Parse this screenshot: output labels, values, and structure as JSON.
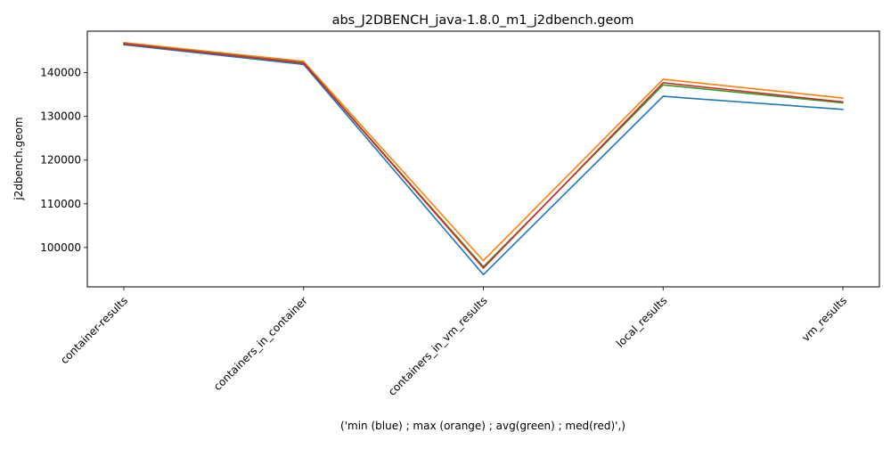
{
  "chart_data": {
    "type": "line",
    "title": "abs_J2DBENCH_java-1.8.0_m1_j2dbench.geom",
    "xlabel": "('min (blue) ; max (orange) ; avg(green) ; med(red)',)",
    "ylabel": "j2dbench.geom",
    "categories": [
      "container-results",
      "containers_in_container",
      "containers_in_vm_results",
      "local_results",
      "vm_results"
    ],
    "ylim": [
      91000,
      149500
    ],
    "yticks": [
      100000,
      110000,
      120000,
      130000,
      140000
    ],
    "ytick_labels": [
      "100000",
      "110000",
      "120000",
      "130000",
      "140000"
    ],
    "grid": false,
    "legend": "none",
    "series": [
      {
        "key": "min",
        "color": "#1f77b4",
        "values": [
          146400,
          141900,
          93800,
          134600,
          131600
        ]
      },
      {
        "key": "max",
        "color": "#ff7f0e",
        "values": [
          146900,
          142600,
          97000,
          138500,
          134200
        ]
      },
      {
        "key": "avg",
        "color": "#2ca02c",
        "values": [
          146700,
          142300,
          95600,
          137200,
          133100
        ]
      },
      {
        "key": "med",
        "color": "#d62728",
        "values": [
          146600,
          142200,
          95300,
          137700,
          133300
        ]
      }
    ]
  }
}
